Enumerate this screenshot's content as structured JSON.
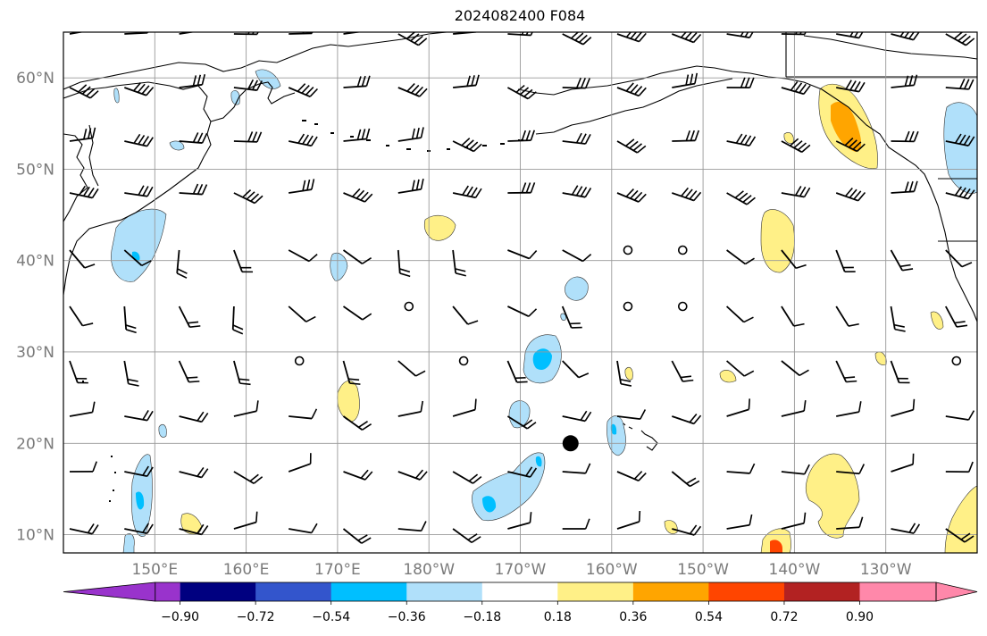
{
  "title": "2024082400 F084",
  "map": {
    "lat_range": [
      8,
      65
    ],
    "lon_range_east": [
      140,
      240
    ],
    "lat_labels": [
      {
        "lat": 60,
        "text": "60°N"
      },
      {
        "lat": 50,
        "text": "50°N"
      },
      {
        "lat": 40,
        "text": "40°N"
      },
      {
        "lat": 30,
        "text": "30°N"
      },
      {
        "lat": 20,
        "text": "20°N"
      },
      {
        "lat": 10,
        "text": "10°N"
      }
    ],
    "lon_labels": [
      {
        "lon": 150,
        "text": "150°E"
      },
      {
        "lon": 160,
        "text": "160°E"
      },
      {
        "lon": 170,
        "text": "170°E"
      },
      {
        "lon": 180,
        "text": "180°W"
      },
      {
        "lon": 190,
        "text": "170°W"
      },
      {
        "lon": 200,
        "text": "160°W"
      },
      {
        "lon": 210,
        "text": "150°W"
      },
      {
        "lon": 220,
        "text": "140°W"
      },
      {
        "lon": 230,
        "text": "130°W"
      }
    ],
    "gridlines": true,
    "marker": {
      "lat": 20,
      "lon": 195.5,
      "color": "#000000"
    }
  },
  "colorbar": {
    "colors": [
      "#9933cc",
      "#000080",
      "#3355cc",
      "#00bfff",
      "#b0e0fa",
      "#ffffff",
      "#fff087",
      "#ffa500",
      "#ff4500",
      "#b22222",
      "#ff88aa"
    ],
    "ticks": [
      "−0.90",
      "−0.72",
      "−0.54",
      "−0.36",
      "−0.18",
      "0.18",
      "0.36",
      "0.54",
      "0.72",
      "0.90"
    ],
    "extend": "both"
  },
  "colors": {
    "light_blue": "#b0e0fa",
    "blue": "#00bfff",
    "yellow": "#fff087",
    "orange": "#ffa500",
    "red_orange": "#ff4500"
  }
}
